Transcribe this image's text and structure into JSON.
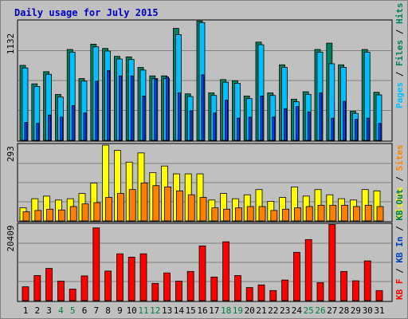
{
  "chart_data": {
    "type": "bar",
    "title": "Daily usage for July 2015",
    "colors": {
      "title": "#0000c0",
      "hits": "#00c0ff",
      "files": "#008060",
      "pages": "#0040ff",
      "visits": "#ffff00",
      "sites": "#ff8000",
      "kbin": "#0040c0",
      "kbout": "#008040",
      "kbf": "#ff0000",
      "weekend_label": "#008040",
      "weekday_label": "#000000",
      "panel": "#c0c0c0",
      "gridline": "#808080"
    },
    "days": [
      "1",
      "2",
      "3",
      "4",
      "5",
      "6",
      "7",
      "8",
      "9",
      "10",
      "11",
      "12",
      "13",
      "14",
      "15",
      "16",
      "17",
      "18",
      "19",
      "20",
      "21",
      "22",
      "23",
      "24",
      "25",
      "26",
      "27",
      "28",
      "29",
      "30",
      "31"
    ],
    "weekend_days": [
      "4",
      "5",
      "11",
      "12",
      "18",
      "19",
      "25",
      "26"
    ],
    "top_panel": {
      "ymax_label": "1132",
      "ylim": [
        0,
        1132
      ],
      "legend": [
        {
          "label": "Pages",
          "color": "#00c0ff"
        },
        {
          "label": "Files",
          "color": "#008060"
        },
        {
          "label": "Hits",
          "color": "#008060"
        }
      ],
      "series": [
        {
          "name": "Hits",
          "color": "#008060",
          "values": [
            710,
            535,
            650,
            435,
            860,
            585,
            910,
            870,
            795,
            790,
            690,
            610,
            610,
            1060,
            440,
            1130,
            450,
            575,
            565,
            420,
            930,
            450,
            715,
            390,
            460,
            860,
            920,
            715,
            275,
            860,
            455
          ]
        },
        {
          "name": "Files",
          "color": "#00c0ff",
          "values": [
            685,
            510,
            625,
            410,
            835,
            560,
            885,
            845,
            770,
            765,
            665,
            585,
            585,
            1000,
            415,
            1115,
            425,
            550,
            540,
            395,
            905,
            425,
            690,
            365,
            435,
            835,
            725,
            690,
            255,
            835,
            430
          ]
        },
        {
          "name": "Pages",
          "color": "#0040ff",
          "values": [
            170,
            160,
            240,
            220,
            330,
            260,
            560,
            660,
            610,
            610,
            420,
            580,
            600,
            450,
            280,
            620,
            260,
            380,
            210,
            220,
            420,
            220,
            300,
            320,
            270,
            450,
            210,
            370,
            200,
            210,
            160
          ]
        }
      ]
    },
    "middle_panel": {
      "ymax_label": "293",
      "ylim": [
        0,
        293
      ],
      "legend": [
        {
          "label": "Visits",
          "color": "#ffff00"
        },
        {
          "label": "Sites",
          "color": "#ff8000"
        }
      ],
      "series": [
        {
          "name": "Visits",
          "color": "#ffff00",
          "values": [
            50,
            85,
            95,
            80,
            85,
            105,
            145,
            290,
            270,
            225,
            260,
            185,
            210,
            180,
            180,
            180,
            80,
            105,
            85,
            100,
            120,
            75,
            90,
            130,
            95,
            120,
            100,
            85,
            80,
            120,
            115
          ]
        },
        {
          "name": "Sites",
          "color": "#ff8000",
          "values": [
            35,
            40,
            45,
            42,
            55,
            65,
            70,
            90,
            105,
            120,
            145,
            135,
            130,
            115,
            100,
            90,
            50,
            45,
            50,
            55,
            55,
            40,
            45,
            50,
            55,
            60,
            60,
            60,
            55,
            60,
            55
          ]
        }
      ]
    },
    "bottom_panel": {
      "ymax_label": "20409",
      "ylim": [
        0,
        20409
      ],
      "legend": [
        {
          "label": "KB F",
          "color": "#ff0000"
        },
        {
          "label": "KB In",
          "color": "#0040c0"
        },
        {
          "label": "KB Out",
          "color": "#008040"
        }
      ],
      "series": [
        {
          "name": "KB F",
          "color": "#ff0000",
          "values": [
            3700,
            6700,
            8600,
            5200,
            3100,
            6600,
            19400,
            7900,
            12500,
            11600,
            12500,
            4600,
            7400,
            5200,
            7800,
            14600,
            6300,
            15700,
            6700,
            3500,
            4200,
            2700,
            5500,
            12900,
            16300,
            4800,
            20300,
            7800,
            5300,
            10600,
            2700
          ]
        }
      ]
    }
  }
}
